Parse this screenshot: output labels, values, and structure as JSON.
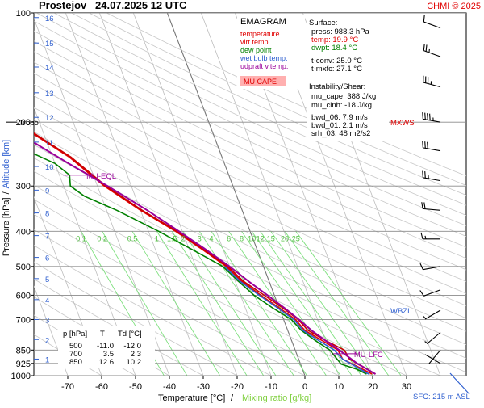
{
  "header": {
    "station": "Prostejov",
    "datetime": "24.07.2025 12 UTC",
    "credit": "CHMI © 2025"
  },
  "chart_data": {
    "type": "line",
    "title": "EMAGRAM",
    "xlabel_temperature": "Temperature [°C]",
    "xlabel_separator": "/",
    "xlabel_mixing": "Mixing ratio [g/kg]",
    "ylabel_pressure": "Pressure [hPa]",
    "ylabel_separator": "/",
    "ylabel_altitude": "Altitude [km]",
    "x_range": [
      -80,
      30
    ],
    "y_range_hpa": [
      1000,
      100
    ],
    "y_scale": "log",
    "x_ticks": [
      -70,
      -60,
      -50,
      -40,
      -30,
      -20,
      -10,
      0,
      10,
      20,
      30
    ],
    "pressure_ticks": [
      {
        "p": 100,
        "label": "100"
      },
      {
        "p": 200,
        "label": "200"
      },
      {
        "p": 300,
        "label": "300"
      },
      {
        "p": 400,
        "label": "400"
      },
      {
        "p": 500,
        "label": "500"
      },
      {
        "p": 600,
        "label": "600"
      },
      {
        "p": 700,
        "label": "700"
      },
      {
        "p": 850,
        "label": "850"
      },
      {
        "p": 925,
        "label": "925"
      },
      {
        "p": 1000,
        "label": "1000"
      }
    ],
    "altitude_ticks": [
      {
        "km": "1",
        "p": 900
      },
      {
        "km": "2",
        "p": 795
      },
      {
        "km": "3",
        "p": 700
      },
      {
        "km": "4",
        "p": 617
      },
      {
        "km": "5",
        "p": 540
      },
      {
        "km": "6",
        "p": 472
      },
      {
        "km": "7",
        "p": 411
      },
      {
        "km": "8",
        "p": 356
      },
      {
        "km": "9",
        "p": 308
      },
      {
        "km": "10",
        "p": 265
      },
      {
        "km": "11",
        "p": 227
      },
      {
        "km": "12",
        "p": 194
      },
      {
        "km": "13",
        "p": 166
      },
      {
        "km": "14",
        "p": 141
      },
      {
        "km": "15",
        "p": 121
      },
      {
        "km": "16",
        "p": 103
      }
    ],
    "mixing_ratio_labels": [
      "0.1",
      "0.2",
      "0.5",
      "1",
      "1.5",
      "2",
      "3",
      "4",
      "6",
      "8",
      "10",
      "12",
      "15",
      "20",
      "25"
    ],
    "series": [
      {
        "name": "temperature",
        "color": "#e00000",
        "points": [
          [
            20,
            990
          ],
          [
            17,
            950
          ],
          [
            13,
            900
          ],
          [
            12.6,
            850
          ],
          [
            9,
            800
          ],
          [
            5,
            750
          ],
          [
            3.5,
            700
          ],
          [
            0,
            650
          ],
          [
            -4,
            600
          ],
          [
            -8,
            550
          ],
          [
            -11,
            500
          ],
          [
            -16,
            450
          ],
          [
            -22,
            400
          ],
          [
            -30,
            350
          ],
          [
            -38,
            300
          ],
          [
            -45,
            250
          ],
          [
            -52,
            220
          ],
          [
            -57,
            200
          ],
          [
            -57,
            190
          ],
          [
            -56,
            180
          ],
          [
            -56,
            170
          ],
          [
            -54,
            160
          ],
          [
            -55,
            150
          ],
          [
            -56,
            140
          ],
          [
            -56,
            130
          ],
          [
            -55,
            120
          ],
          [
            -55,
            110
          ],
          [
            -56,
            100
          ]
        ]
      },
      {
        "name": "virt.temp.",
        "color": "#c80000",
        "points": [
          [
            21,
            990
          ],
          [
            18.5,
            950
          ],
          [
            15,
            900
          ],
          [
            14.5,
            850
          ],
          [
            10,
            800
          ],
          [
            6,
            750
          ],
          [
            4.3,
            700
          ],
          [
            1,
            650
          ],
          [
            -3,
            600
          ],
          [
            -7.5,
            550
          ],
          [
            -10.5,
            500
          ],
          [
            -15.5,
            450
          ],
          [
            -21.5,
            400
          ],
          [
            -29.5,
            350
          ],
          [
            -37.5,
            300
          ],
          [
            -44.5,
            250
          ],
          [
            -51.5,
            220
          ],
          [
            -56.5,
            200
          ]
        ]
      },
      {
        "name": "dew point",
        "color": "#008000",
        "points": [
          [
            18.4,
            990
          ],
          [
            16,
            960
          ],
          [
            12,
            930
          ],
          [
            10.2,
            850
          ],
          [
            7,
            800
          ],
          [
            4,
            750
          ],
          [
            2.3,
            700
          ],
          [
            -2,
            650
          ],
          [
            -6,
            600
          ],
          [
            -9,
            550
          ],
          [
            -12,
            500
          ],
          [
            -19,
            450
          ],
          [
            -27,
            400
          ],
          [
            -37,
            350
          ],
          [
            -45,
            320
          ],
          [
            -48,
            300
          ],
          [
            -47,
            280
          ],
          [
            -50,
            260
          ],
          [
            -55,
            245
          ],
          [
            -60,
            230
          ],
          [
            -66,
            215
          ],
          [
            -72,
            205
          ],
          [
            -78,
            195
          ],
          [
            -82,
            185
          ],
          [
            -82,
            170
          ]
        ]
      },
      {
        "name": "wet bulb temp.",
        "color": "#3060d0",
        "points": [
          [
            19,
            990
          ],
          [
            16.5,
            950
          ],
          [
            13,
            900
          ],
          [
            11.5,
            850
          ],
          [
            8,
            800
          ],
          [
            4.5,
            750
          ],
          [
            3,
            700
          ],
          [
            -0.5,
            650
          ],
          [
            -4.5,
            600
          ],
          [
            -8.5,
            550
          ],
          [
            -11.5,
            500
          ]
        ]
      },
      {
        "name": "udpraft v.temp.",
        "color": "#9a009a",
        "points": [
          [
            21,
            990
          ],
          [
            17,
            930
          ],
          [
            13,
            850
          ],
          [
            10,
            800
          ],
          [
            7,
            750
          ],
          [
            4.5,
            700
          ],
          [
            1.5,
            650
          ],
          [
            -2,
            600
          ],
          [
            -6,
            550
          ],
          [
            -10,
            500
          ],
          [
            -15,
            450
          ],
          [
            -21,
            400
          ],
          [
            -28,
            350
          ],
          [
            -37,
            300
          ],
          [
            -46,
            260
          ],
          [
            -52,
            235
          ],
          [
            -57,
            215
          ],
          [
            -62,
            200
          ],
          [
            -68,
            180
          ],
          [
            -76,
            160
          ],
          [
            -85,
            140
          ],
          [
            -92,
            125
          ]
        ]
      }
    ],
    "annotations": [
      {
        "text": "Tropo",
        "p": 200,
        "t": -57,
        "color": "#000000"
      },
      {
        "text": "MU-EQL",
        "p": 280,
        "t": -43,
        "color": "#9a009a"
      },
      {
        "text": "MU-LFC",
        "p": 870,
        "t": 16,
        "color": "#9a009a"
      },
      {
        "text": "WBZL",
        "p": 660,
        "t": 25,
        "color": "#3060d0"
      },
      {
        "text": "MXWS",
        "p": 200,
        "t": 27,
        "color": "#e00000"
      }
    ]
  },
  "legend": {
    "title": "EMAGRAM",
    "items": [
      {
        "label": "temperature",
        "color": "#e00000"
      },
      {
        "label": "virt.temp.",
        "color": "#e00000"
      },
      {
        "label": "dew point",
        "color": "#008000"
      },
      {
        "label": "wet bulb temp.",
        "color": "#3060d0"
      },
      {
        "label": "udpraft v.temp.",
        "color": "#9a009a"
      }
    ],
    "mu_cape_label": "MU CAPE",
    "mu_cape_bg": "#ffb0b0"
  },
  "stats": {
    "surface_title": "Surface:",
    "press": "press: 988.3 hPa",
    "temp": "temp: 19.9 °C",
    "dwpt": "dwpt: 18.4 °C",
    "tconv": "t-conv: 25.0 °C",
    "tmxfc": "t-mxfc: 27.1 °C",
    "instab_title": "Instability/Shear:",
    "mu_cape": "mu_cape: 388 J/kg",
    "mu_cinh": "mu_cinh: -18 J/kg",
    "bwd06": "bwd_06: 7.9 m/s",
    "bwd01": "bwd_01: 2.1 m/s",
    "srh03": "srh_03: 48 m2/s2"
  },
  "level_table": {
    "headers": [
      "p [hPa]",
      "T",
      "Td [°C]"
    ],
    "rows": [
      [
        "500",
        "-11.0",
        "-12.0"
      ],
      [
        "700",
        "3.5",
        "2.3"
      ],
      [
        "850",
        "12.6",
        "10.2"
      ]
    ]
  },
  "sfc_label": "SFC: 215 m ASL",
  "wind_barbs": [
    {
      "p": 110,
      "dir": 290,
      "spd": 10
    },
    {
      "p": 132,
      "dir": 290,
      "spd": 25
    },
    {
      "p": 160,
      "dir": 285,
      "spd": 35
    },
    {
      "p": 200,
      "dir": 280,
      "spd": 45
    },
    {
      "p": 240,
      "dir": 280,
      "spd": 30
    },
    {
      "p": 290,
      "dir": 280,
      "spd": 25
    },
    {
      "p": 350,
      "dir": 275,
      "spd": 20
    },
    {
      "p": 420,
      "dir": 270,
      "spd": 15
    },
    {
      "p": 500,
      "dir": 260,
      "spd": 12
    },
    {
      "p": 580,
      "dir": 250,
      "spd": 10
    },
    {
      "p": 660,
      "dir": 240,
      "spd": 8
    },
    {
      "p": 760,
      "dir": 230,
      "spd": 5
    },
    {
      "p": 850,
      "dir": 220,
      "spd": 4
    },
    {
      "p": 925,
      "dir": 300,
      "spd": 3
    }
  ]
}
